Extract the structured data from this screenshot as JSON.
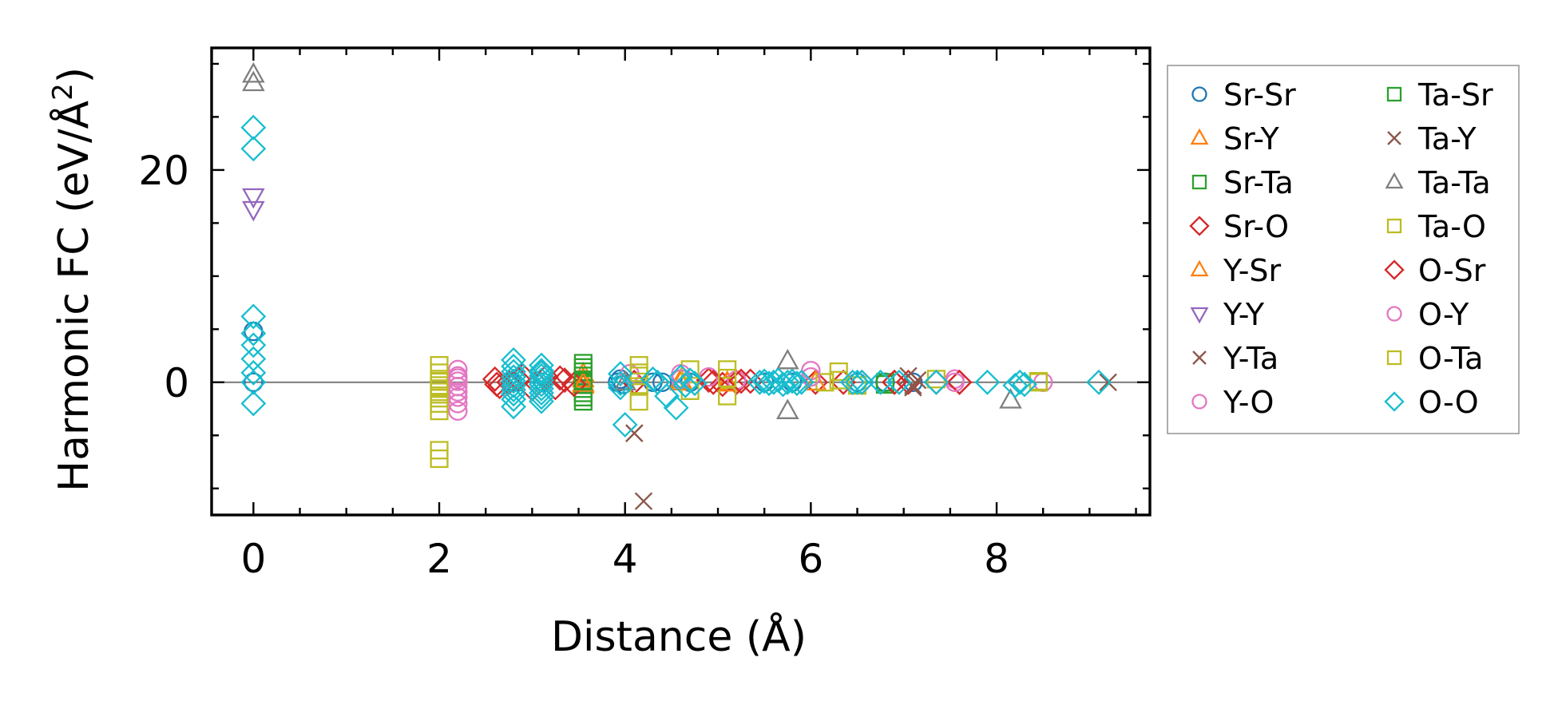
{
  "chart_data": {
    "type": "scatter",
    "title": "",
    "xlabel": "Distance (Å)",
    "ylabel_main": "Harmonic FC (eV/Å",
    "ylabel_sup": "2",
    "ylabel_tail": ")",
    "xlim": [
      -0.45,
      9.65
    ],
    "ylim": [
      -12.5,
      31.5
    ],
    "xticks": [
      0,
      2,
      4,
      6,
      8
    ],
    "yticks": [
      0,
      20
    ],
    "x_minor_step": 0.5,
    "y_minor_step": 5,
    "zero_line": true,
    "grid": false,
    "legend_position": "outside-right",
    "legend_columns": 2,
    "series": [
      {
        "name": "Sr-Sr",
        "marker": "circle",
        "color": "#1f77b4",
        "x": [
          0,
          0,
          2.78,
          3.12,
          3.92,
          3.95,
          3.98,
          4.3,
          4.4,
          4.7,
          5.5,
          5.8,
          6.5,
          6.8,
          7.1
        ],
        "y": [
          0,
          4.8,
          0,
          0,
          0,
          0.3,
          -0.2,
          0,
          0,
          0,
          0,
          0,
          0,
          0,
          0
        ]
      },
      {
        "name": "Sr-Y",
        "marker": "triangle-up",
        "color": "#ff7f0e",
        "x": [
          3.55,
          3.55,
          3.55,
          4.6,
          5.1
        ],
        "y": [
          0.8,
          0.3,
          -0.3,
          0,
          0
        ]
      },
      {
        "name": "Sr-Ta",
        "marker": "square",
        "color": "#2ca02c",
        "x": [
          3.55,
          3.55,
          3.55,
          3.55,
          3.55,
          3.55,
          3.55,
          3.55,
          3.55,
          3.55,
          3.55,
          6.8
        ],
        "y": [
          1.8,
          1.4,
          1.0,
          0.6,
          0.2,
          -0.2,
          -0.6,
          -1.0,
          -1.4,
          -1.8,
          0,
          0
        ]
      },
      {
        "name": "Sr-O",
        "marker": "diamond",
        "color": "#d62728",
        "x": [
          2.6,
          2.65,
          2.75,
          2.9,
          3.0,
          3.15,
          3.25,
          3.35,
          3.45,
          4.1,
          4.9,
          5.05,
          5.2,
          5.35,
          6.05,
          6.35,
          6.55,
          6.9,
          7.05,
          7.35,
          7.6
        ],
        "y": [
          0.3,
          -0.4,
          0,
          0.6,
          -0.6,
          0.5,
          -0.5,
          0.2,
          -0.2,
          0,
          0.2,
          -0.2,
          0,
          0.1,
          0,
          0,
          0,
          0,
          0,
          0,
          0
        ]
      },
      {
        "name": "Y-Sr",
        "marker": "triangle-up",
        "color": "#ff7f0e",
        "x": [
          3.55,
          4.6,
          5.1,
          6.05
        ],
        "y": [
          -0.1,
          0.2,
          -0.1,
          0
        ]
      },
      {
        "name": "Y-Y",
        "marker": "triangle-down",
        "color": "#9467bd",
        "x": [
          0,
          0
        ],
        "y": [
          17.5,
          16.3
        ]
      },
      {
        "name": "Y-Ta",
        "marker": "x",
        "color": "#8c564b",
        "x": [
          4.1,
          4.2,
          7.05,
          7.1,
          7.15,
          9.2
        ],
        "y": [
          -4.8,
          -11.2,
          0.6,
          -0.5,
          0.2,
          0
        ]
      },
      {
        "name": "Y-O",
        "marker": "circle",
        "color": "#e377c2",
        "x": [
          2.2,
          2.2,
          2.2,
          2.2,
          2.2,
          2.2,
          2.2,
          2.2,
          4.05,
          4.6,
          4.9,
          5.2,
          6.0,
          7.55,
          8.5
        ],
        "y": [
          1.2,
          0.6,
          0.1,
          -0.4,
          -0.9,
          -1.4,
          -2.0,
          -2.7,
          0.8,
          0.8,
          0.5,
          0.2,
          1.1,
          0.3,
          0
        ]
      },
      {
        "name": "Ta-Sr",
        "marker": "square",
        "color": "#2ca02c",
        "x": [
          3.55,
          6.8
        ],
        "y": [
          0.1,
          -0.2
        ]
      },
      {
        "name": "Ta-Y",
        "marker": "x",
        "color": "#8c564b",
        "x": [
          4.1,
          7.1
        ],
        "y": [
          -4.8,
          -0.3
        ]
      },
      {
        "name": "Ta-Ta",
        "marker": "triangle-up",
        "color": "#7f7f7f",
        "x": [
          0,
          0,
          4.0,
          5.75,
          5.75,
          8.15
        ],
        "y": [
          29.0,
          28.2,
          0,
          2.0,
          -2.7,
          -1.7
        ]
      },
      {
        "name": "Ta-O",
        "marker": "square",
        "color": "#bcbd22",
        "x": [
          2.0,
          2.0,
          2.0,
          2.0,
          2.0,
          2.0,
          2.0,
          2.0,
          2.0,
          2.0,
          2.0,
          4.15,
          4.15,
          4.15,
          4.15,
          4.7,
          4.7,
          5.1,
          5.1,
          6.15,
          6.3,
          6.5,
          7.35,
          8.45
        ],
        "y": [
          1.6,
          0.9,
          0.3,
          -0.3,
          -0.9,
          -1.5,
          -2.0,
          -2.7,
          -6.4,
          -7.2,
          0.1,
          1.6,
          0.6,
          -0.4,
          -1.8,
          1.2,
          -0.8,
          1.2,
          -1.3,
          0,
          1.0,
          -0.3,
          0.3,
          0
        ]
      },
      {
        "name": "O-Sr",
        "marker": "diamond",
        "color": "#d62728",
        "x": [
          2.62,
          2.85,
          3.05,
          3.3,
          4.95,
          5.25,
          6.9,
          7.6
        ],
        "y": [
          -0.2,
          0.3,
          -0.1,
          0.4,
          0,
          0.1,
          0,
          0
        ]
      },
      {
        "name": "O-Y",
        "marker": "circle",
        "color": "#e377c2",
        "x": [
          2.2,
          4.6,
          6.0,
          7.55
        ],
        "y": [
          0.4,
          0.3,
          0.5,
          0
        ]
      },
      {
        "name": "O-Ta",
        "marker": "square",
        "color": "#bcbd22",
        "x": [
          2.0,
          4.15,
          5.1,
          6.3,
          8.45
        ],
        "y": [
          -0.6,
          0.9,
          0.4,
          0.2,
          0.1
        ]
      },
      {
        "name": "O-O",
        "marker": "diamond",
        "color": "#17becf",
        "x": [
          0,
          0,
          0,
          0,
          0,
          0,
          0,
          0,
          0,
          2.8,
          2.8,
          2.8,
          2.8,
          2.8,
          2.8,
          2.8,
          2.8,
          2.8,
          2.8,
          3.1,
          3.1,
          3.1,
          3.1,
          3.1,
          3.1,
          3.1,
          3.1,
          3.1,
          3.1,
          3.95,
          3.95,
          3.95,
          4.0,
          4.3,
          4.45,
          4.35,
          4.55,
          4.6,
          4.65,
          4.7,
          4.75,
          5.45,
          5.5,
          5.55,
          5.6,
          5.65,
          5.7,
          5.75,
          5.8,
          5.85,
          5.9,
          6.45,
          6.5,
          6.55,
          6.75,
          6.95,
          7.35,
          7.9,
          8.2,
          8.25,
          8.3,
          9.1
        ],
        "y": [
          24.0,
          22.0,
          6.2,
          4.6,
          3.5,
          2.2,
          0.9,
          0,
          -2.0,
          2.1,
          1.5,
          1.0,
          0.5,
          0.1,
          -0.3,
          -0.7,
          -1.1,
          -1.6,
          -2.3,
          1.6,
          1.1,
          0.6,
          0.2,
          -0.2,
          -0.6,
          -1.0,
          -1.4,
          -1.8,
          0.9,
          0.8,
          -0.1,
          -0.5,
          -4.0,
          0.3,
          -1.3,
          0,
          -2.4,
          0.5,
          -0.3,
          0.2,
          -0.1,
          0,
          0.1,
          -0.1,
          0,
          0.2,
          -0.2,
          0,
          0.1,
          -0.1,
          0,
          0,
          0,
          0,
          0,
          0,
          0,
          0,
          -0.3,
          0,
          -0.2,
          0
        ]
      }
    ]
  }
}
